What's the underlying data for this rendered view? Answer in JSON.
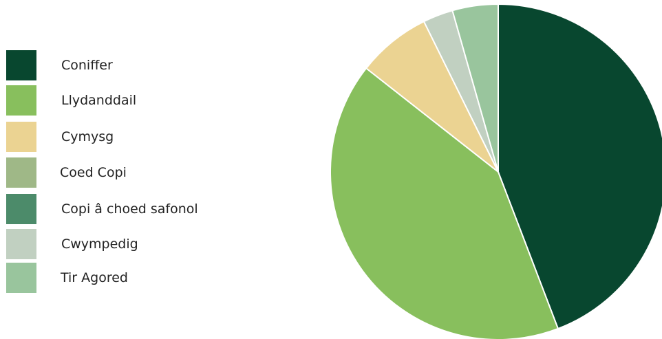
{
  "chart_data": {
    "type": "pie",
    "title": "",
    "start_angle_deg": 0,
    "direction": "clockwise",
    "slices": [
      {
        "label": "Coniffer",
        "value": 44.2,
        "color": "#08472f"
      },
      {
        "label": "Llydanddail",
        "value": 41.4,
        "color": "#88bf5d"
      },
      {
        "label": "Cymysg",
        "value": 7.1,
        "color": "#ebd392"
      },
      {
        "label": "Coed Copi",
        "value": 0.0,
        "color": "#9fb887"
      },
      {
        "label": "Copi â choed safonol",
        "value": 0.0,
        "color": "#4c8b6a"
      },
      {
        "label": "Cwympedig",
        "value": 2.9,
        "color": "#c1d0c1"
      },
      {
        "label": "Tir Agored",
        "value": 4.4,
        "color": "#99c59d"
      }
    ],
    "legend_position": "left"
  }
}
